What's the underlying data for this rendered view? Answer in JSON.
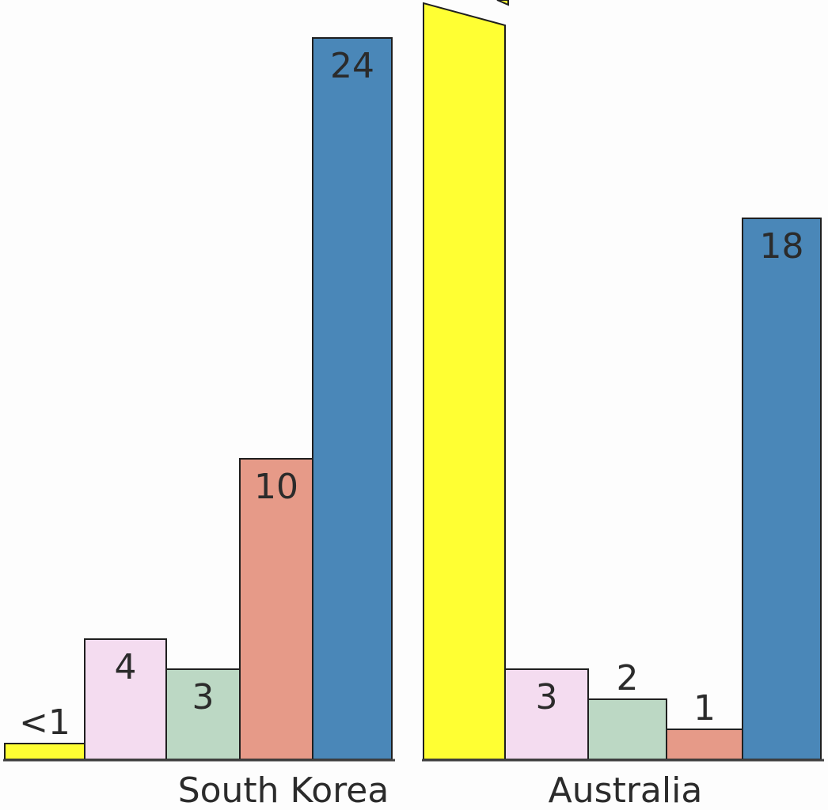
{
  "chart_data": {
    "type": "bar",
    "categories": [
      "South Korea",
      "Australia"
    ],
    "series": [
      {
        "color": "#ffff33",
        "values": [
          0.5,
          null
        ],
        "labels": [
          "<1",
          ""
        ],
        "axis_break": [
          false,
          true
        ]
      },
      {
        "color": "#f4dcf0",
        "values": [
          4,
          3
        ],
        "labels": [
          "4",
          "3"
        ]
      },
      {
        "color": "#bcd8c4",
        "values": [
          3,
          2
        ],
        "labels": [
          "3",
          "2"
        ]
      },
      {
        "color": "#e69a88",
        "values": [
          10,
          1
        ],
        "labels": [
          "10",
          "1"
        ]
      },
      {
        "color": "#4a87b8",
        "values": [
          24,
          18
        ],
        "labels": [
          "24",
          "18"
        ]
      }
    ],
    "ylim": [
      0,
      24
    ],
    "grid": false,
    "title": "",
    "xlabel": "",
    "ylabel": ""
  }
}
